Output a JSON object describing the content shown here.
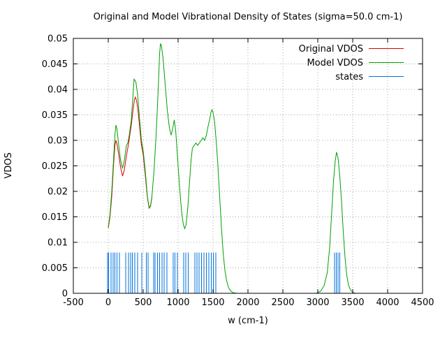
{
  "chart_data": {
    "type": "line",
    "title": "Original and Model Vibrational Density of States (sigma=50.0 cm-1)",
    "xlabel": "w (cm-1)",
    "ylabel": "VDOS",
    "xlim": [
      -500,
      4500
    ],
    "ylim": [
      0,
      0.05
    ],
    "xtick_step": 500,
    "ytick_step": 0.005,
    "grid": true,
    "legend_position": "top-right",
    "series": [
      {
        "name": "Original VDOS",
        "color": "#dd0000",
        "points": [
          [
            0,
            0.0128
          ],
          [
            25,
            0.015
          ],
          [
            50,
            0.019
          ],
          [
            75,
            0.025
          ],
          [
            95,
            0.029
          ],
          [
            110,
            0.03
          ],
          [
            125,
            0.0293
          ],
          [
            150,
            0.0272
          ],
          [
            175,
            0.0248
          ],
          [
            205,
            0.023
          ],
          [
            230,
            0.0242
          ],
          [
            260,
            0.027
          ],
          [
            280,
            0.0285
          ],
          [
            300,
            0.0302
          ],
          [
            330,
            0.033
          ],
          [
            355,
            0.036
          ],
          [
            375,
            0.038
          ],
          [
            388,
            0.0385
          ],
          [
            405,
            0.0378
          ],
          [
            425,
            0.036
          ],
          [
            450,
            0.0325
          ],
          [
            475,
            0.029
          ],
          [
            500,
            0.0272
          ],
          [
            530,
            0.0232
          ],
          [
            560,
            0.0188
          ],
          [
            585,
            0.0167
          ],
          [
            605,
            0.0172
          ],
          [
            625,
            0.0188
          ]
        ]
      },
      {
        "name": "Model VDOS",
        "color": "#00a000",
        "points": [
          [
            0,
            0.013
          ],
          [
            25,
            0.0155
          ],
          [
            50,
            0.02
          ],
          [
            75,
            0.026
          ],
          [
            95,
            0.031
          ],
          [
            110,
            0.033
          ],
          [
            125,
            0.0322
          ],
          [
            150,
            0.029
          ],
          [
            175,
            0.0262
          ],
          [
            205,
            0.0245
          ],
          [
            230,
            0.026
          ],
          [
            260,
            0.029
          ],
          [
            280,
            0.0295
          ],
          [
            300,
            0.031
          ],
          [
            330,
            0.034
          ],
          [
            355,
            0.039
          ],
          [
            370,
            0.042
          ],
          [
            395,
            0.0415
          ],
          [
            420,
            0.039
          ],
          [
            450,
            0.034
          ],
          [
            475,
            0.03
          ],
          [
            500,
            0.028
          ],
          [
            530,
            0.024
          ],
          [
            560,
            0.019
          ],
          [
            585,
            0.0168
          ],
          [
            605,
            0.017
          ],
          [
            625,
            0.019
          ],
          [
            655,
            0.024
          ],
          [
            685,
            0.031
          ],
          [
            715,
            0.04
          ],
          [
            735,
            0.047
          ],
          [
            748,
            0.049
          ],
          [
            762,
            0.0485
          ],
          [
            785,
            0.046
          ],
          [
            815,
            0.041
          ],
          [
            845,
            0.036
          ],
          [
            875,
            0.0325
          ],
          [
            900,
            0.031
          ],
          [
            925,
            0.0325
          ],
          [
            945,
            0.034
          ],
          [
            965,
            0.032
          ],
          [
            990,
            0.027
          ],
          [
            1020,
            0.021
          ],
          [
            1050,
            0.016
          ],
          [
            1075,
            0.0135
          ],
          [
            1095,
            0.0127
          ],
          [
            1115,
            0.0135
          ],
          [
            1140,
            0.017
          ],
          [
            1165,
            0.022
          ],
          [
            1185,
            0.026
          ],
          [
            1205,
            0.0285
          ],
          [
            1230,
            0.029
          ],
          [
            1255,
            0.0295
          ],
          [
            1280,
            0.029
          ],
          [
            1305,
            0.0295
          ],
          [
            1330,
            0.03
          ],
          [
            1355,
            0.0305
          ],
          [
            1380,
            0.03
          ],
          [
            1405,
            0.031
          ],
          [
            1425,
            0.0325
          ],
          [
            1450,
            0.034
          ],
          [
            1470,
            0.0355
          ],
          [
            1485,
            0.036
          ],
          [
            1500,
            0.0355
          ],
          [
            1520,
            0.034
          ],
          [
            1545,
            0.03
          ],
          [
            1570,
            0.025
          ],
          [
            1595,
            0.019
          ],
          [
            1620,
            0.013
          ],
          [
            1645,
            0.008
          ],
          [
            1670,
            0.0045
          ],
          [
            1695,
            0.0025
          ],
          [
            1720,
            0.0012
          ],
          [
            1750,
            0.0005
          ],
          [
            1790,
            0.0001
          ],
          [
            1840,
            0
          ],
          [
            2980,
            0
          ],
          [
            3040,
            0.0004
          ],
          [
            3090,
            0.0015
          ],
          [
            3135,
            0.004
          ],
          [
            3170,
            0.009
          ],
          [
            3200,
            0.016
          ],
          [
            3225,
            0.022
          ],
          [
            3250,
            0.026
          ],
          [
            3268,
            0.0277
          ],
          [
            3290,
            0.0265
          ],
          [
            3315,
            0.023
          ],
          [
            3340,
            0.018
          ],
          [
            3365,
            0.012
          ],
          [
            3390,
            0.007
          ],
          [
            3415,
            0.0035
          ],
          [
            3440,
            0.0016
          ],
          [
            3470,
            0.0006
          ],
          [
            3510,
            0.0001
          ],
          [
            3550,
            0
          ]
        ]
      }
    ],
    "states": {
      "name": "states",
      "color": "#0072dd",
      "height": 0.008,
      "x": [
        -10,
        5,
        40,
        70,
        95,
        125,
        160,
        250,
        290,
        320,
        345,
        380,
        420,
        480,
        545,
        570,
        650,
        670,
        705,
        735,
        770,
        800,
        840,
        930,
        955,
        990,
        1080,
        1110,
        1145,
        1240,
        1270,
        1300,
        1335,
        1370,
        1405,
        1440,
        1475,
        1505,
        1540,
        3240,
        3265,
        3290,
        3315
      ]
    }
  }
}
